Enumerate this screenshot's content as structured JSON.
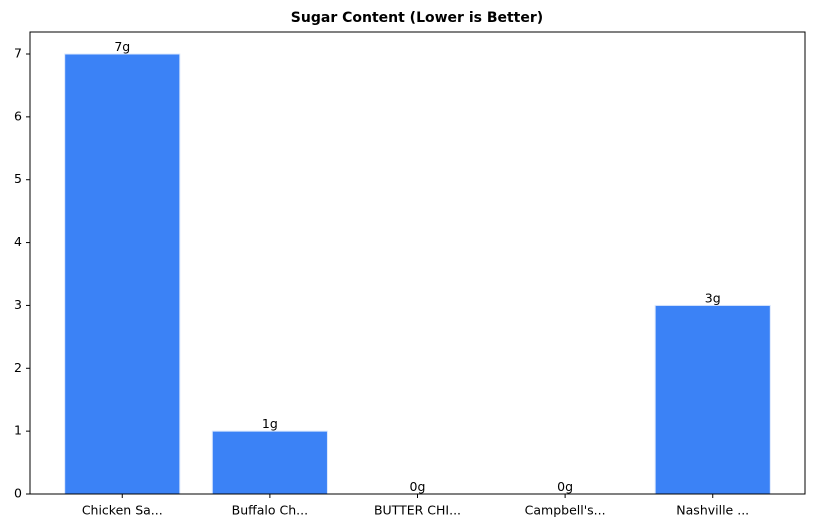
{
  "chart_data": {
    "type": "bar",
    "title": "Sugar Content (Lower is Better)",
    "categories": [
      "Chicken Sa...",
      "Buffalo Ch...",
      "BUTTER CHI...",
      "Campbell's...",
      "Nashville ..."
    ],
    "values": [
      7,
      1,
      0,
      0,
      3
    ],
    "value_labels": [
      "7g",
      "1g",
      "0g",
      "0g",
      "3g"
    ],
    "color": "#3b82f6",
    "ylim": [
      0,
      7.35
    ],
    "yticks": [
      0,
      1,
      2,
      3,
      4,
      5,
      6,
      7
    ],
    "grid": false
  }
}
